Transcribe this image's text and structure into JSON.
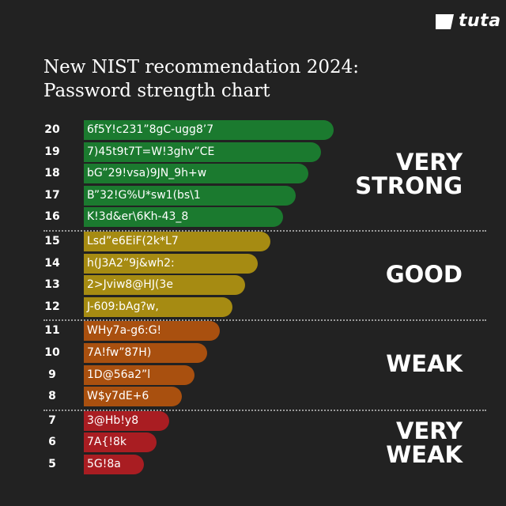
{
  "brand": {
    "name": "tuta"
  },
  "title": {
    "line1": "New NIST recommendation 2024:",
    "line2": "Password strength chart"
  },
  "chart_data": {
    "type": "bar",
    "orientation": "horizontal",
    "title": "New NIST recommendation 2024: Password strength chart",
    "categories": [
      "20",
      "19",
      "18",
      "17",
      "16",
      "15",
      "14",
      "13",
      "12",
      "11",
      "10",
      "9",
      "8",
      "7",
      "6",
      "5"
    ],
    "values": [
      20,
      19,
      18,
      17,
      16,
      15,
      14,
      13,
      12,
      11,
      10,
      9,
      8,
      7,
      6,
      5
    ],
    "passwords": [
      "6f5Y!c231”8gC-ugg8’7",
      "7)45t9t7T=W!3ghv”CE",
      "bG”29!vsa)9JN_9h+w",
      "B”32!G%U*sw1(bs\\1",
      "K!3d&er\\6Kh-43_8",
      "Lsd”e6EiF(2k*L7",
      "h(J3A2”9j&wh2:",
      "2>Jviw8@HJ(3e",
      "J-609:bAg?w,",
      "WHy7a-g6:G!",
      "7A!fw”87H)",
      "1D@56a2”l",
      "W$y7dE+6",
      "3@Hb!y8",
      "7A{!8k",
      "5G!8a"
    ],
    "groups": [
      {
        "label_line1": "VERY",
        "label_line2": "STRONG",
        "range": [
          16,
          20
        ],
        "color": "#1b7a2f"
      },
      {
        "label_line1": "GOOD",
        "label_line2": "",
        "range": [
          12,
          15
        ],
        "color": "#a68b12"
      },
      {
        "label_line1": "WEAK",
        "label_line2": "",
        "range": [
          8,
          11
        ],
        "color": "#a9500f"
      },
      {
        "label_line1": "VERY",
        "label_line2": "WEAK",
        "range": [
          5,
          7
        ],
        "color": "#a91d22"
      }
    ]
  }
}
